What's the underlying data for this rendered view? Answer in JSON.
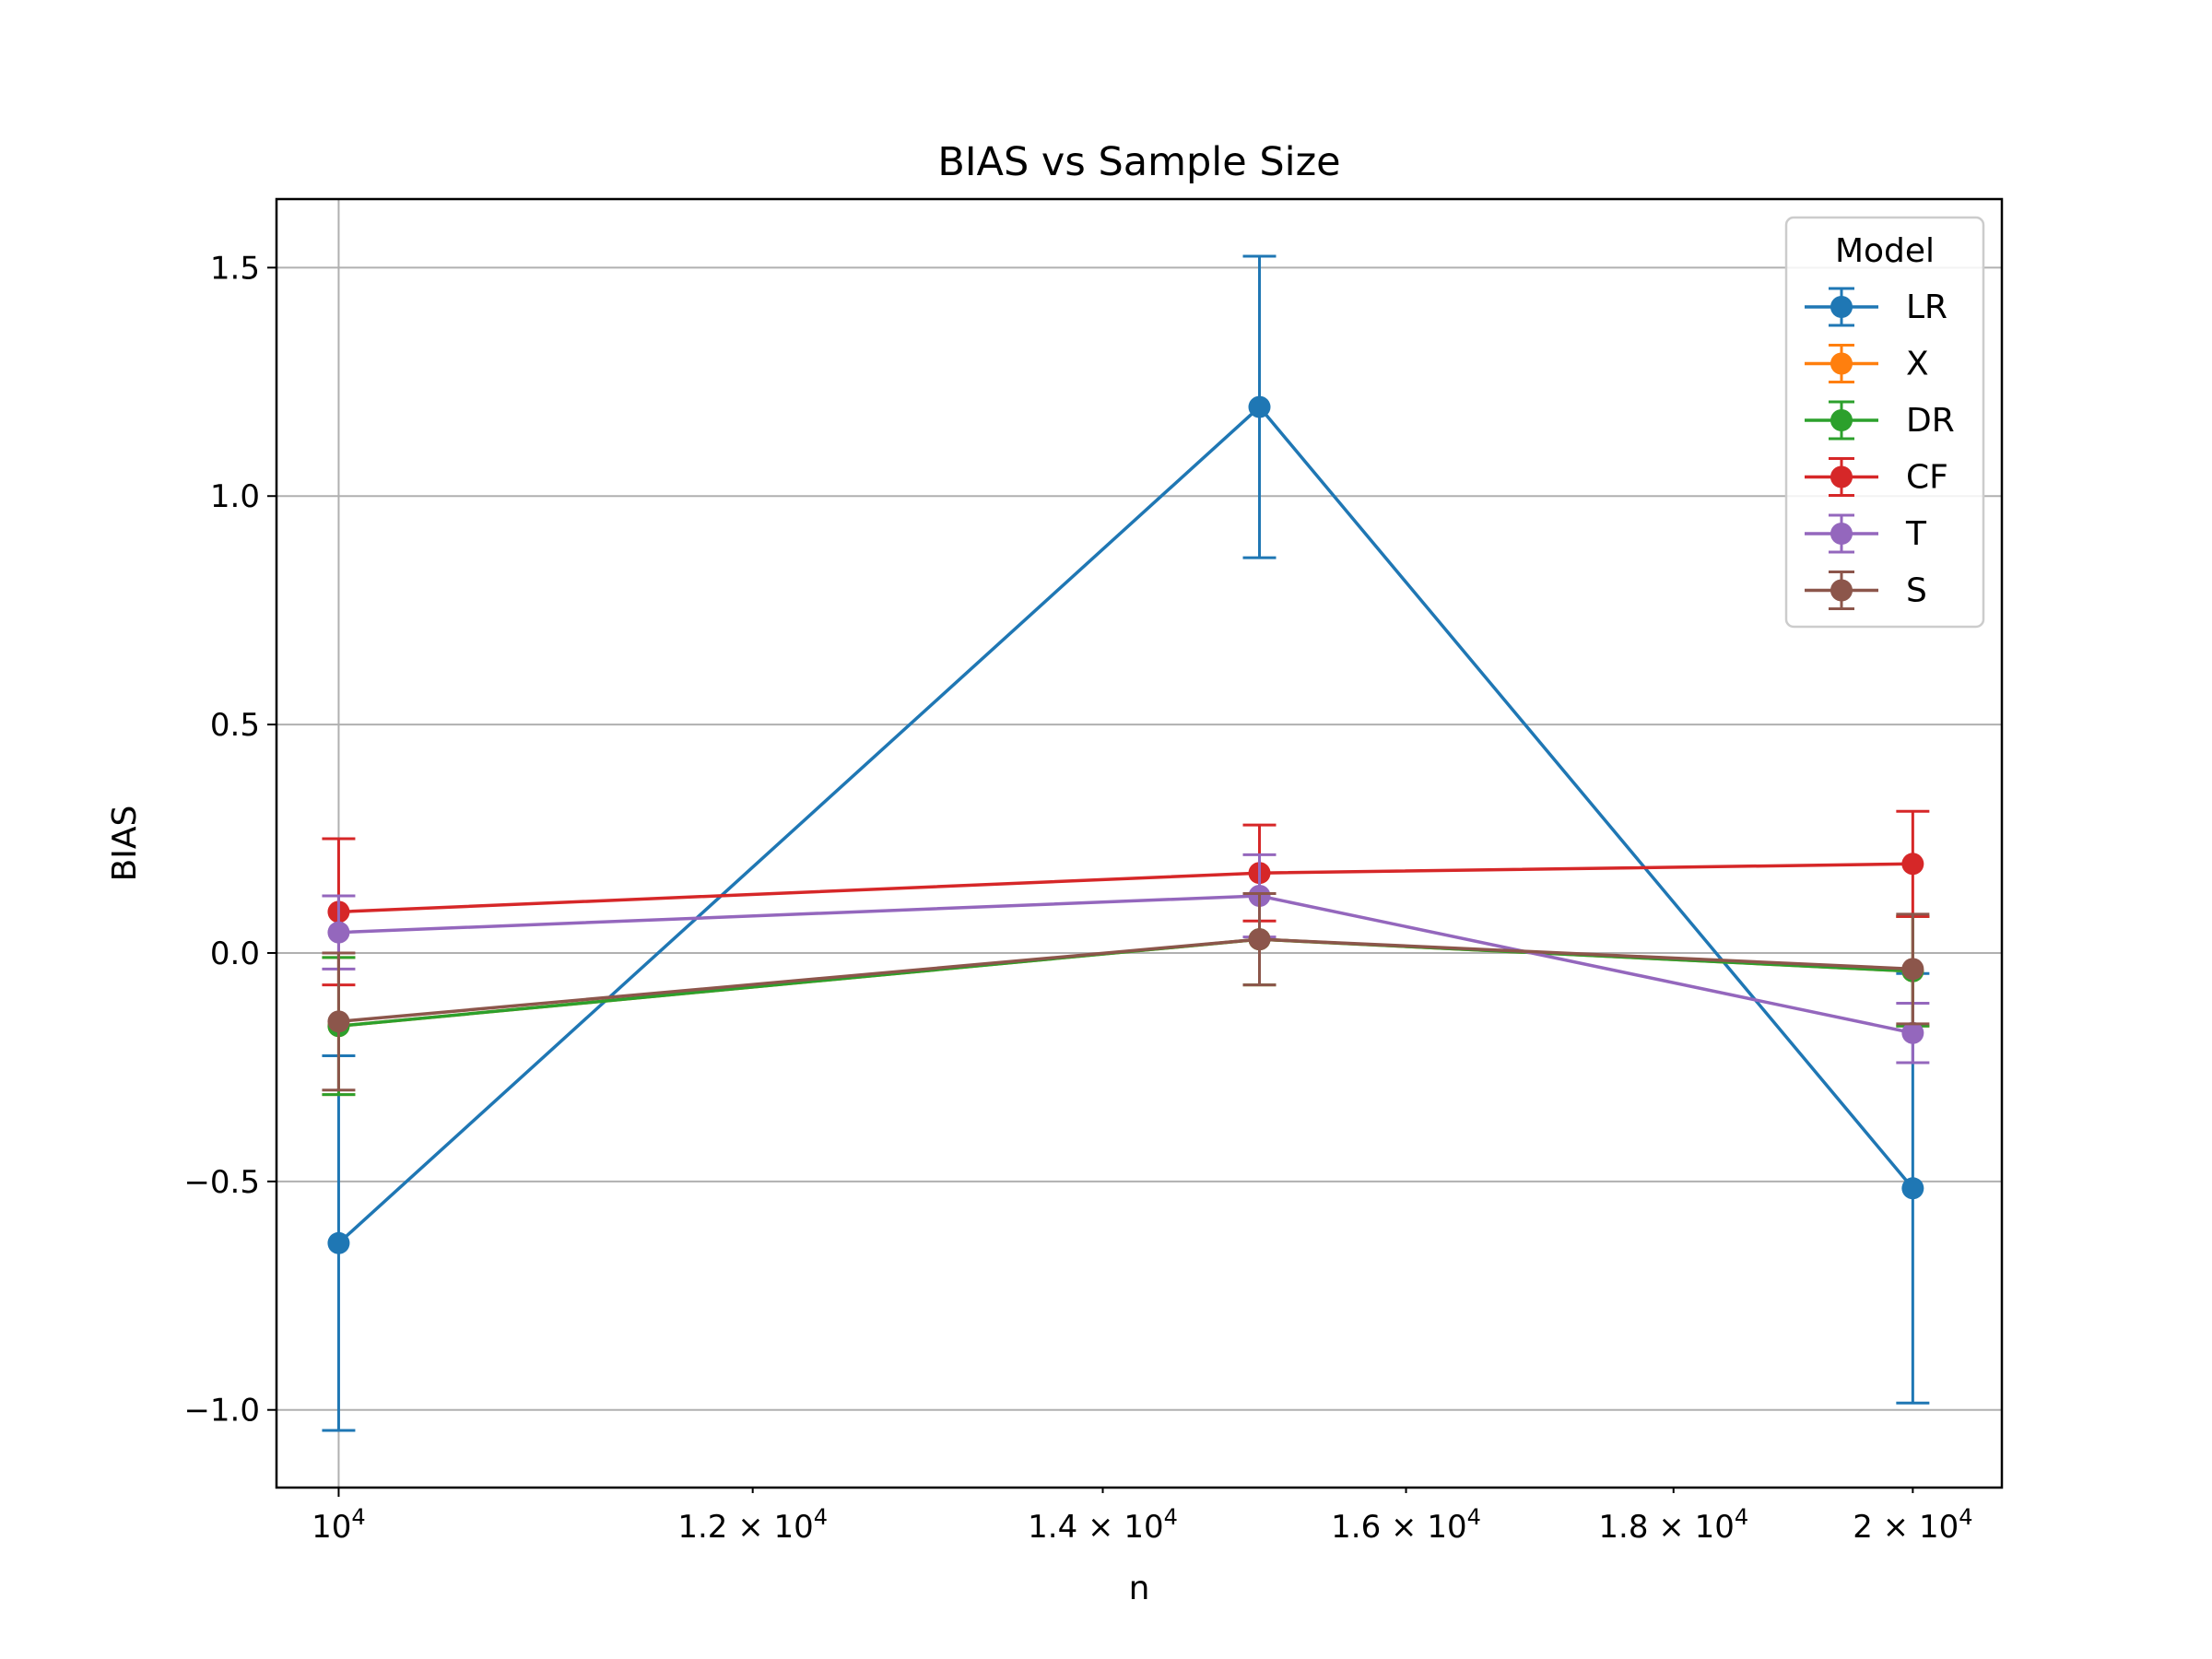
{
  "chart_data": {
    "type": "line",
    "title": "BIAS vs Sample Size",
    "xlabel": "n",
    "ylabel": "BIAS",
    "xscale": "log",
    "xlim": [
      9730,
      20800
    ],
    "ylim": [
      -1.17,
      1.65
    ],
    "x": [
      10000,
      15000,
      20000
    ],
    "x_ticks": [
      {
        "value": 10000,
        "mant": "",
        "base": "10",
        "exp": "4"
      },
      {
        "value": 12000,
        "mant": "1.2 × ",
        "base": "10",
        "exp": "4"
      },
      {
        "value": 14000,
        "mant": "1.4 × ",
        "base": "10",
        "exp": "4"
      },
      {
        "value": 16000,
        "mant": "1.6 × ",
        "base": "10",
        "exp": "4"
      },
      {
        "value": 18000,
        "mant": "1.8 × ",
        "base": "10",
        "exp": "4"
      },
      {
        "value": 20000,
        "mant": "2 × ",
        "base": "10",
        "exp": "4"
      }
    ],
    "y_ticks": [
      {
        "value": 1.5,
        "label": "1.5"
      },
      {
        "value": 1.0,
        "label": "1.0"
      },
      {
        "value": 0.5,
        "label": "0.5"
      },
      {
        "value": 0.0,
        "label": "0.0"
      },
      {
        "value": -0.5,
        "label": "−0.5"
      },
      {
        "value": -1.0,
        "label": "−1.0"
      }
    ],
    "grid": true,
    "legend": {
      "title": "Model",
      "placement": "top-right"
    },
    "series": [
      {
        "name": "LR",
        "color": "#1f77b4",
        "values": [
          -0.635,
          1.195,
          -0.515
        ],
        "errors": [
          0.41,
          0.33,
          0.47
        ]
      },
      {
        "name": "X",
        "color": "#ff7f0e",
        "values": [
          -0.16,
          0.03,
          -0.04
        ],
        "errors": [
          0.15,
          0.1,
          0.12
        ]
      },
      {
        "name": "DR",
        "color": "#2ca02c",
        "values": [
          -0.16,
          0.03,
          -0.04
        ],
        "errors": [
          0.15,
          0.1,
          0.12
        ]
      },
      {
        "name": "CF",
        "color": "#d62728",
        "values": [
          0.09,
          0.175,
          0.195
        ],
        "errors": [
          0.16,
          0.105,
          0.115
        ]
      },
      {
        "name": "T",
        "color": "#9467bd",
        "values": [
          0.045,
          0.125,
          -0.175
        ],
        "errors": [
          0.08,
          0.09,
          0.065
        ]
      },
      {
        "name": "S",
        "color": "#8c564b",
        "values": [
          -0.15,
          0.03,
          -0.035
        ],
        "errors": [
          0.15,
          0.1,
          0.12
        ]
      }
    ]
  }
}
